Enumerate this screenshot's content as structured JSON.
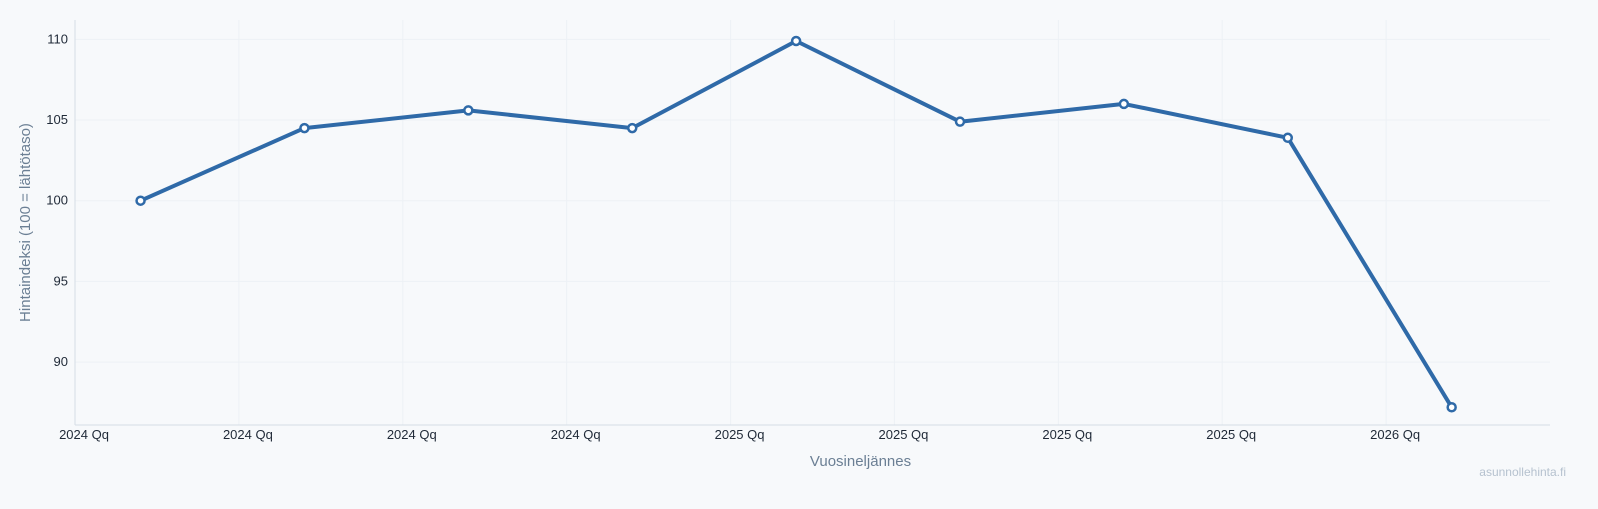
{
  "chart_data": {
    "type": "line",
    "title": "",
    "xlabel": "Vuosineljännes",
    "ylabel": "Hintaindeksi (100 = lähtötaso)",
    "x_ticks": [
      "2024 Qq",
      "2024 Qq",
      "2024 Qq",
      "2024 Qq",
      "2025 Qq",
      "2025 Qq",
      "2025 Qq",
      "2025 Qq",
      "2026 Qq"
    ],
    "y_ticks": [
      90,
      95,
      100,
      105,
      110
    ],
    "xlim": [
      0,
      9
    ],
    "ylim": [
      86.1,
      111.2
    ],
    "grid": true,
    "series": [
      {
        "x": [
          0.4,
          1.4,
          2.4,
          3.4,
          4.4,
          5.4,
          6.4,
          7.4,
          8.4
        ],
        "values": [
          100.0,
          104.5,
          105.6,
          104.5,
          109.9,
          104.9,
          106.0,
          103.9,
          87.2
        ],
        "color": "#2f6aa8"
      }
    ]
  },
  "watermark": "asunnollehinta.fi",
  "colors": {
    "background": "#f7f9fb",
    "line": "#2f6aa8",
    "axis": "#d5dde6",
    "grid": "#edf1f5"
  }
}
